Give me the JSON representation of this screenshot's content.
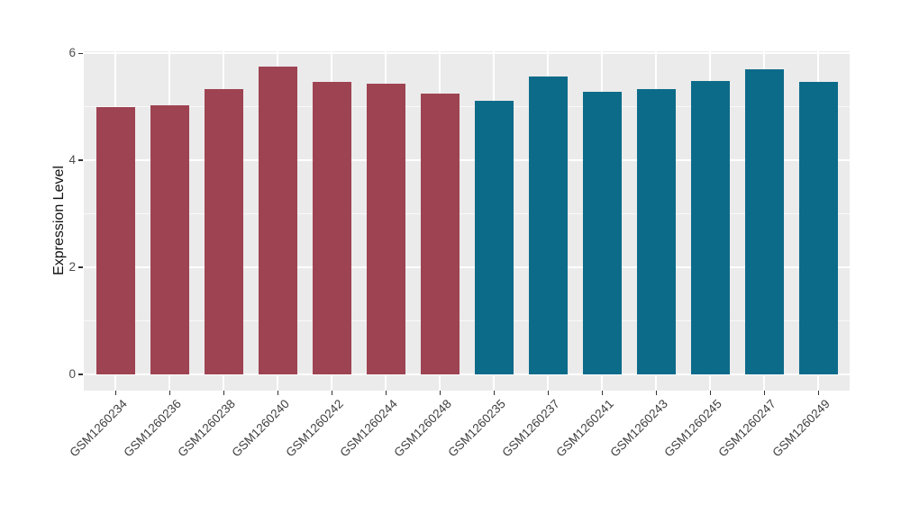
{
  "chart_data": {
    "type": "bar",
    "title": "",
    "xlabel": "",
    "ylabel": "Expression Level",
    "ylim": [
      0,
      6
    ],
    "yticks": [
      0,
      2,
      4,
      6
    ],
    "yticks_minor": [
      1,
      3,
      5
    ],
    "grid": "on",
    "legend_position": "none",
    "panel_bg": "#EBEBEB",
    "grid_color": "#FFFFFF",
    "tick_color": "#333333",
    "groups": [
      {
        "name": "group-1",
        "color": "#9E4352"
      },
      {
        "name": "group-2",
        "color": "#0D6B8A"
      }
    ],
    "bars": [
      {
        "label": "GSM1260234",
        "value": 5.0,
        "group": 0
      },
      {
        "label": "GSM1260236",
        "value": 5.03,
        "group": 0
      },
      {
        "label": "GSM1260238",
        "value": 5.34,
        "group": 0
      },
      {
        "label": "GSM1260240",
        "value": 5.75,
        "group": 0
      },
      {
        "label": "GSM1260242",
        "value": 5.47,
        "group": 0
      },
      {
        "label": "GSM1260244",
        "value": 5.44,
        "group": 0
      },
      {
        "label": "GSM1260248",
        "value": 5.25,
        "group": 0
      },
      {
        "label": "GSM1260235",
        "value": 5.12,
        "group": 1
      },
      {
        "label": "GSM1260237",
        "value": 5.57,
        "group": 1
      },
      {
        "label": "GSM1260241",
        "value": 5.29,
        "group": 1
      },
      {
        "label": "GSM1260243",
        "value": 5.33,
        "group": 1
      },
      {
        "label": "GSM1260245",
        "value": 5.48,
        "group": 1
      },
      {
        "label": "GSM1260247",
        "value": 5.7,
        "group": 1
      },
      {
        "label": "GSM1260249",
        "value": 5.47,
        "group": 1
      }
    ]
  }
}
